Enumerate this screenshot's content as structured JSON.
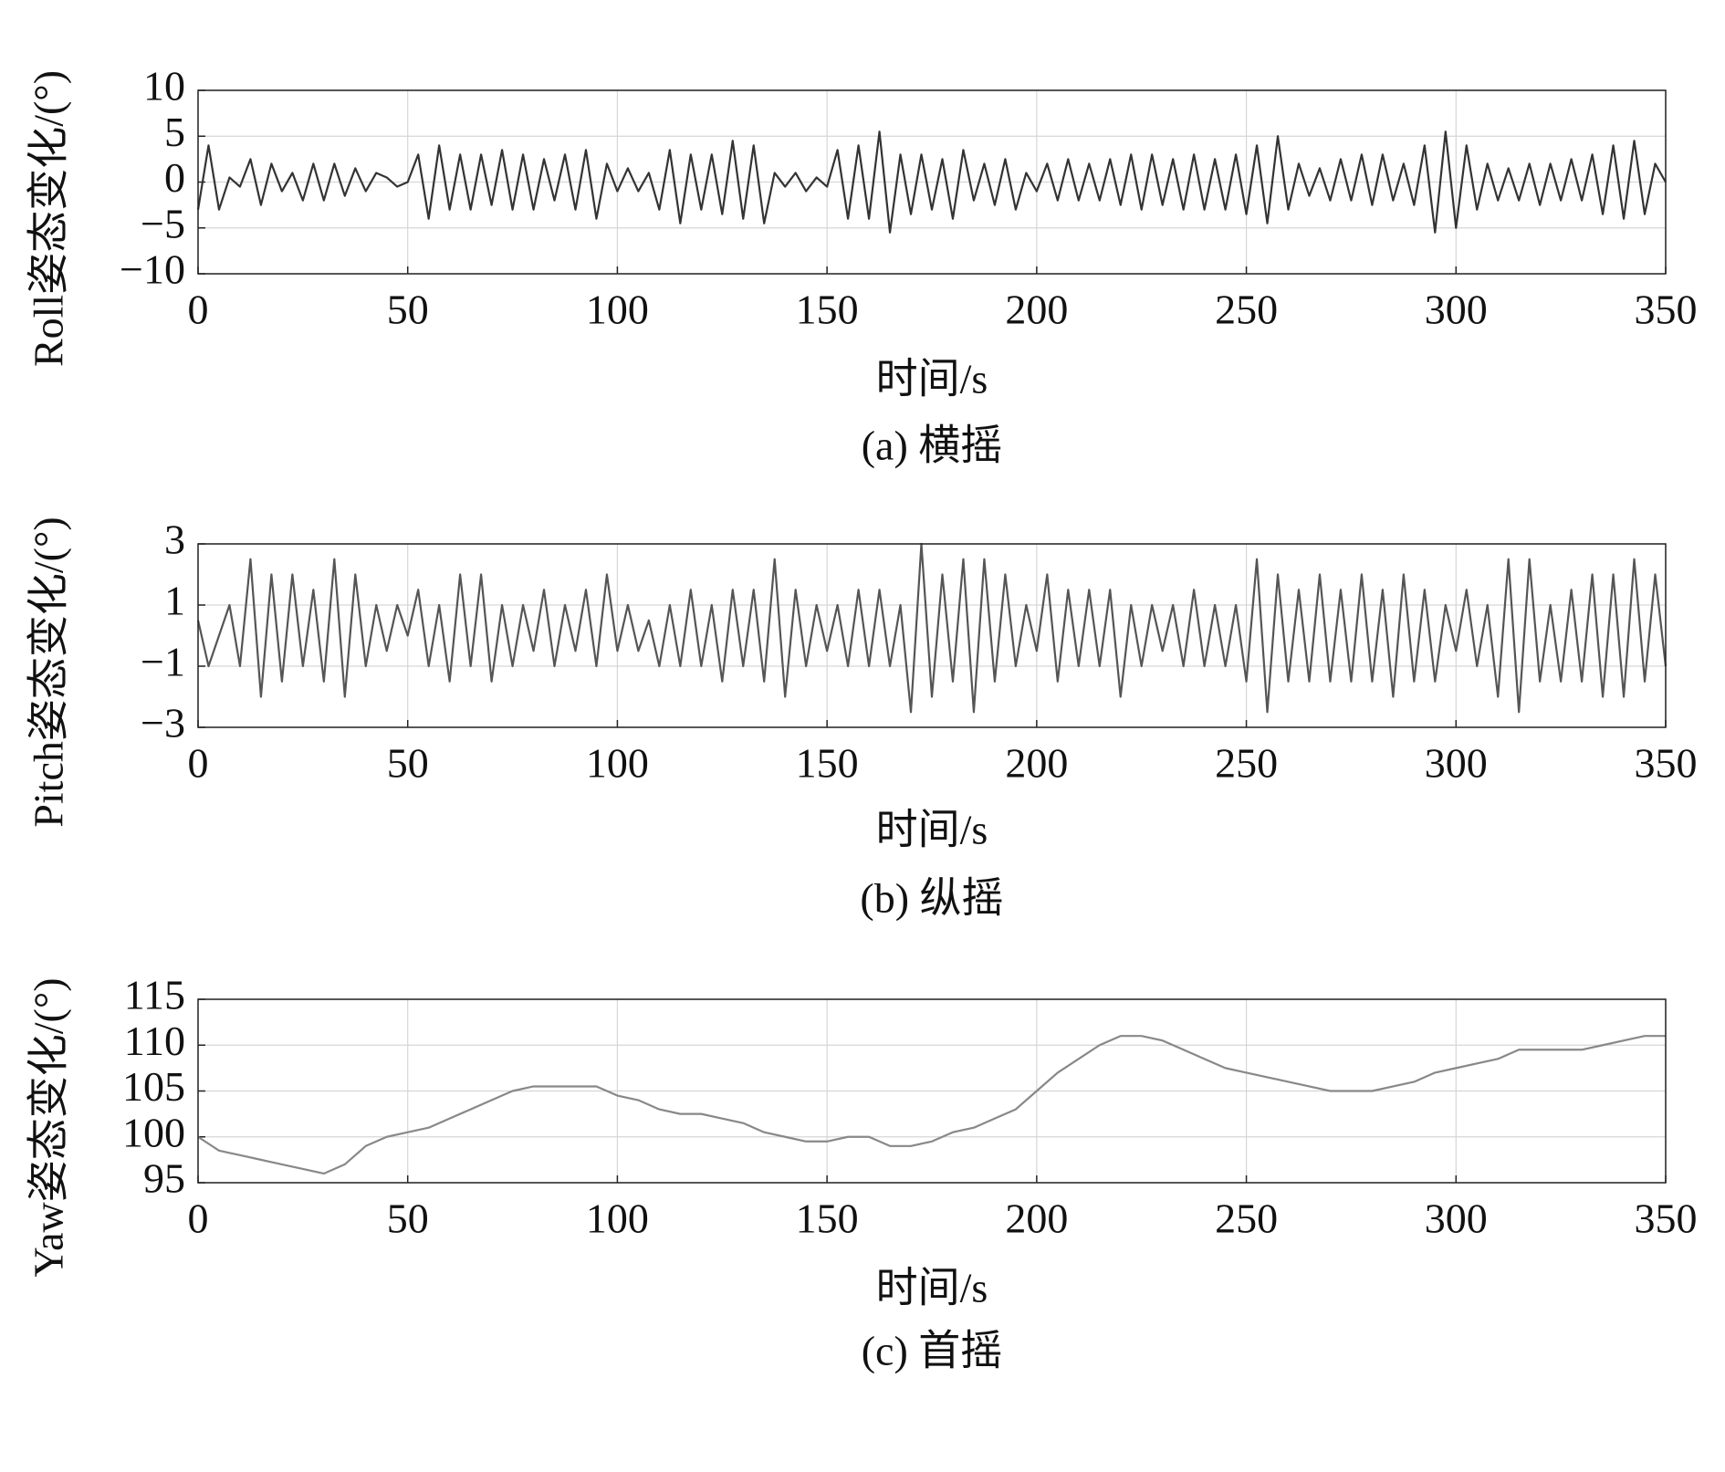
{
  "chart_data": [
    {
      "type": "line",
      "title": "(a) 横摇",
      "xlabel": "时间/s",
      "ylabel": "Roll姿态变化/(°)",
      "color": "#333333",
      "grid": true,
      "xlim": [
        0,
        350
      ],
      "xticks": [
        0,
        50,
        100,
        150,
        200,
        250,
        300,
        350
      ],
      "ylim": [
        -10,
        10
      ],
      "yticks": [
        {
          "value": -10,
          "label": "−10"
        },
        {
          "value": -5,
          "label": "−5"
        },
        0,
        5,
        10
      ],
      "x": [
        0,
        2.5,
        5,
        7.5,
        10,
        12.5,
        15,
        17.5,
        20,
        22.5,
        25,
        27.5,
        30,
        32.5,
        35,
        37.5,
        40,
        42.5,
        45,
        47.5,
        50,
        52.5,
        55,
        57.5,
        60,
        62.5,
        65,
        67.5,
        70,
        72.5,
        75,
        77.5,
        80,
        82.5,
        85,
        87.5,
        90,
        92.5,
        95,
        97.5,
        100,
        102.5,
        105,
        107.5,
        110,
        112.5,
        115,
        117.5,
        120,
        122.5,
        125,
        127.5,
        130,
        132.5,
        135,
        137.5,
        140,
        142.5,
        145,
        147.5,
        150,
        152.5,
        155,
        157.5,
        160,
        162.5,
        165,
        167.5,
        170,
        172.5,
        175,
        177.5,
        180,
        182.5,
        185,
        187.5,
        190,
        192.5,
        195,
        197.5,
        200,
        202.5,
        205,
        207.5,
        210,
        212.5,
        215,
        217.5,
        220,
        222.5,
        225,
        227.5,
        230,
        232.5,
        235,
        237.5,
        240,
        242.5,
        245,
        247.5,
        250,
        252.5,
        255,
        257.5,
        260,
        262.5,
        265,
        267.5,
        270,
        272.5,
        275,
        277.5,
        280,
        282.5,
        285,
        287.5,
        290,
        292.5,
        295,
        297.5,
        300,
        302.5,
        305,
        307.5,
        310,
        312.5,
        315,
        317.5,
        320,
        322.5,
        325,
        327.5,
        330,
        332.5,
        335,
        337.5,
        340,
        342.5,
        345,
        347.5,
        350
      ],
      "values": [
        -3,
        4,
        -3,
        0.5,
        -0.5,
        2.5,
        -2.5,
        2,
        -1,
        1,
        -2,
        2,
        -2,
        2,
        -1.5,
        1.5,
        -1,
        1,
        0.5,
        -0.5,
        0,
        3,
        -4,
        4,
        -3,
        3,
        -3,
        3,
        -2.5,
        3.5,
        -3,
        3,
        -3,
        2.5,
        -2,
        3,
        -3,
        3.5,
        -4,
        2,
        -1,
        1.5,
        -1,
        1,
        -3,
        3.5,
        -4.5,
        3,
        -3,
        3,
        -3.5,
        4.5,
        -4,
        4,
        -4.5,
        1,
        -0.5,
        1,
        -1,
        0.5,
        -0.5,
        3.5,
        -4,
        4,
        -4,
        5.5,
        -5.5,
        3,
        -3.5,
        3,
        -3,
        2.5,
        -4,
        3.5,
        -2,
        2,
        -2.5,
        2.5,
        -3,
        1,
        -1,
        2,
        -2,
        2.5,
        -2,
        2,
        -2,
        2.5,
        -2.5,
        3,
        -3,
        3,
        -2.5,
        2.5,
        -3,
        3,
        -3,
        2.5,
        -3,
        3,
        -3.5,
        4,
        -4.5,
        5,
        -3,
        2,
        -1.5,
        1.5,
        -2,
        2.5,
        -2,
        3,
        -2.5,
        3,
        -2,
        2,
        -2.5,
        4,
        -5.5,
        5.5,
        -5,
        4,
        -3,
        2,
        -2,
        1.5,
        -2,
        2,
        -2.5,
        2,
        -2,
        2.5,
        -2,
        3,
        -3.5,
        4,
        -4,
        4.5,
        -3.5,
        2,
        0
      ]
    },
    {
      "type": "line",
      "title": "(b) 纵摇",
      "xlabel": "时间/s",
      "ylabel": "Pitch姿态变化/(°)",
      "color": "#555555",
      "grid": true,
      "xlim": [
        0,
        350
      ],
      "xticks": [
        0,
        50,
        100,
        150,
        200,
        250,
        300,
        350
      ],
      "ylim": [
        -3,
        3
      ],
      "yticks": [
        {
          "value": -3,
          "label": "−3"
        },
        {
          "value": -1,
          "label": "−1"
        },
        1,
        3
      ],
      "x": [
        0,
        2.5,
        5,
        7.5,
        10,
        12.5,
        15,
        17.5,
        20,
        22.5,
        25,
        27.5,
        30,
        32.5,
        35,
        37.5,
        40,
        42.5,
        45,
        47.5,
        50,
        52.5,
        55,
        57.5,
        60,
        62.5,
        65,
        67.5,
        70,
        72.5,
        75,
        77.5,
        80,
        82.5,
        85,
        87.5,
        90,
        92.5,
        95,
        97.5,
        100,
        102.5,
        105,
        107.5,
        110,
        112.5,
        115,
        117.5,
        120,
        122.5,
        125,
        127.5,
        130,
        132.5,
        135,
        137.5,
        140,
        142.5,
        145,
        147.5,
        150,
        152.5,
        155,
        157.5,
        160,
        162.5,
        165,
        167.5,
        170,
        172.5,
        175,
        177.5,
        180,
        182.5,
        185,
        187.5,
        190,
        192.5,
        195,
        197.5,
        200,
        202.5,
        205,
        207.5,
        210,
        212.5,
        215,
        217.5,
        220,
        222.5,
        225,
        227.5,
        230,
        232.5,
        235,
        237.5,
        240,
        242.5,
        245,
        247.5,
        250,
        252.5,
        255,
        257.5,
        260,
        262.5,
        265,
        267.5,
        270,
        272.5,
        275,
        277.5,
        280,
        282.5,
        285,
        287.5,
        290,
        292.5,
        295,
        297.5,
        300,
        302.5,
        305,
        307.5,
        310,
        312.5,
        315,
        317.5,
        320,
        322.5,
        325,
        327.5,
        330,
        332.5,
        335,
        337.5,
        340,
        342.5,
        345,
        347.5,
        350
      ],
      "values": [
        0.5,
        -1,
        0,
        1,
        -1,
        2.5,
        -2,
        2,
        -1.5,
        2,
        -1,
        1.5,
        -1.5,
        2.5,
        -2,
        2,
        -1,
        1,
        -0.5,
        1,
        0,
        1.5,
        -1,
        1,
        -1.5,
        2,
        -1,
        2,
        -1.5,
        1,
        -1,
        1,
        -0.5,
        1.5,
        -1,
        1,
        -0.5,
        1.5,
        -1,
        2,
        -0.5,
        1,
        -0.5,
        0.5,
        -1,
        1,
        -1,
        1.5,
        -1,
        1,
        -1.5,
        1.5,
        -1,
        1.5,
        -1.5,
        2.5,
        -2,
        1.5,
        -1,
        1,
        -0.5,
        1,
        -1,
        1.5,
        -1,
        1.5,
        -1,
        1,
        -2.5,
        3,
        -2,
        2,
        -1.5,
        2.5,
        -2.5,
        2.5,
        -1.5,
        2,
        -1,
        1,
        -0.5,
        2,
        -1.5,
        1.5,
        -1,
        1.5,
        -1,
        1.5,
        -2,
        1,
        -1,
        1,
        -0.5,
        1,
        -1,
        1.5,
        -1,
        1,
        -1,
        1,
        -1.5,
        2.5,
        -2.5,
        2,
        -1.5,
        1.5,
        -1.5,
        2,
        -1.5,
        1.5,
        -1.5,
        2,
        -1.5,
        1.5,
        -2,
        2,
        -1.5,
        1.5,
        -1.5,
        1,
        -0.5,
        1.5,
        -1,
        1,
        -2,
        2.5,
        -2.5,
        2.5,
        -1.5,
        1,
        -1.5,
        1.5,
        -1.5,
        2,
        -2,
        2,
        -2,
        2.5,
        -1.5,
        2,
        -1
      ]
    },
    {
      "type": "line",
      "title": "(c) 首摇",
      "xlabel": "时间/s",
      "ylabel": "Yaw姿态变化/(°)",
      "color": "#888888",
      "grid": true,
      "xlim": [
        0,
        350
      ],
      "xticks": [
        0,
        50,
        100,
        150,
        200,
        250,
        300,
        350
      ],
      "ylim": [
        95,
        115
      ],
      "yticks": [
        95,
        100,
        105,
        110,
        115
      ],
      "x": [
        0,
        5,
        10,
        15,
        20,
        25,
        30,
        35,
        40,
        45,
        50,
        55,
        60,
        65,
        70,
        75,
        80,
        85,
        90,
        95,
        100,
        105,
        110,
        115,
        120,
        125,
        130,
        135,
        140,
        145,
        150,
        155,
        160,
        165,
        170,
        175,
        180,
        185,
        190,
        195,
        200,
        205,
        210,
        215,
        220,
        225,
        230,
        235,
        240,
        245,
        250,
        255,
        260,
        265,
        270,
        275,
        280,
        285,
        290,
        295,
        300,
        305,
        310,
        315,
        320,
        325,
        330,
        335,
        340,
        345,
        350
      ],
      "values": [
        100,
        98.5,
        98,
        97.5,
        97,
        96.5,
        96,
        97,
        99,
        100,
        100.5,
        101,
        102,
        103,
        104,
        105,
        105.5,
        105.5,
        105.5,
        105.5,
        104.5,
        104,
        103,
        102.5,
        102.5,
        102,
        101.5,
        100.5,
        100,
        99.5,
        99.5,
        100,
        100,
        99,
        99,
        99.5,
        100.5,
        101,
        102,
        103,
        105,
        107,
        108.5,
        110,
        111,
        111,
        110.5,
        109.5,
        108.5,
        107.5,
        107,
        106.5,
        106,
        105.5,
        105,
        105,
        105,
        105.5,
        106,
        107,
        107.5,
        108,
        108.5,
        109.5,
        109.5,
        109.5,
        109.5,
        110,
        110.5,
        111,
        111
      ]
    }
  ]
}
